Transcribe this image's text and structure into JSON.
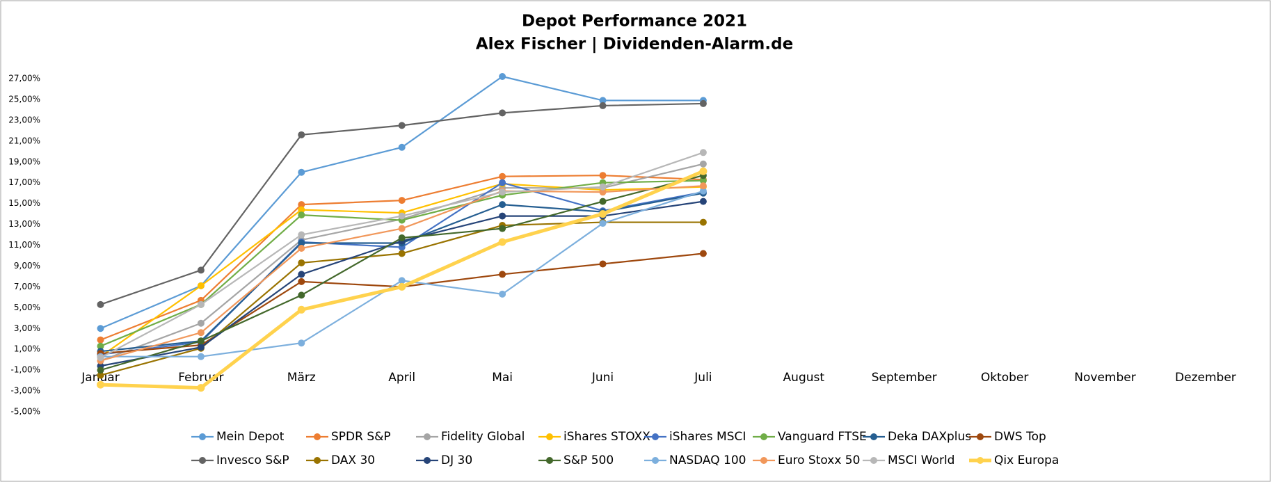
{
  "chart_data": {
    "type": "line",
    "title": "Depot Performance 2021",
    "subtitle": "Alex Fischer | Dividenden-Alarm.de",
    "categories": [
      "Januar",
      "Februar",
      "März",
      "April",
      "Mai",
      "Juni",
      "Juli",
      "August",
      "September",
      "Oktober",
      "November",
      "Dezember"
    ],
    "ylim": [
      -5,
      27
    ],
    "yticks": [
      {
        "value": -5,
        "label": "-5,00%"
      },
      {
        "value": -3,
        "label": "-3,00%"
      },
      {
        "value": -1,
        "label": "-1,00%"
      },
      {
        "value": 1,
        "label": "1,00%"
      },
      {
        "value": 3,
        "label": "3,00%"
      },
      {
        "value": 5,
        "label": "5,00%"
      },
      {
        "value": 7,
        "label": "7,00%"
      },
      {
        "value": 9,
        "label": "9,00%"
      },
      {
        "value": 11,
        "label": "11,00%"
      },
      {
        "value": 13,
        "label": "13,00%"
      },
      {
        "value": 15,
        "label": "15,00%"
      },
      {
        "value": 17,
        "label": "17,00%"
      },
      {
        "value": 19,
        "label": "19,00%"
      },
      {
        "value": 21,
        "label": "21,00%"
      },
      {
        "value": 23,
        "label": "23,00%"
      },
      {
        "value": 25,
        "label": "25,00%"
      },
      {
        "value": 27,
        "label": "27,00%"
      }
    ],
    "grid": false,
    "legend": "bottom",
    "series": [
      {
        "name": "Mein Depot",
        "color": "#5b9bd5",
        "values": [
          3.0,
          7.1,
          18.0,
          20.4,
          27.2,
          24.9,
          24.9,
          null,
          null,
          null,
          null,
          null
        ]
      },
      {
        "name": "SPDR S&P",
        "color": "#ed7d31",
        "values": [
          1.9,
          5.7,
          14.9,
          15.3,
          17.6,
          17.7,
          17.3,
          null,
          null,
          null,
          null,
          null
        ]
      },
      {
        "name": "Fidelity Global",
        "color": "#a5a5a5",
        "values": [
          -0.1,
          3.5,
          11.5,
          13.5,
          16.5,
          16.5,
          18.8,
          null,
          null,
          null,
          null,
          null
        ]
      },
      {
        "name": "iShares STOXX",
        "color": "#ffc000",
        "values": [
          0.3,
          7.1,
          14.4,
          14.1,
          16.9,
          16.3,
          16.6,
          null,
          null,
          null,
          null,
          null
        ]
      },
      {
        "name": "iShares MSCI",
        "color": "#4472c4",
        "values": [
          0.5,
          1.7,
          11.3,
          10.8,
          17.0,
          14.3,
          16.1,
          null,
          null,
          null,
          null,
          null
        ]
      },
      {
        "name": "Vanguard FTSE",
        "color": "#70ad47",
        "values": [
          1.3,
          5.3,
          13.9,
          13.4,
          15.8,
          17.0,
          17.2,
          null,
          null,
          null,
          null,
          null
        ]
      },
      {
        "name": "Deka DAXplus",
        "color": "#255e91",
        "values": [
          0.8,
          1.8,
          11.2,
          11.2,
          14.9,
          14.2,
          16.0,
          null,
          null,
          null,
          null,
          null
        ]
      },
      {
        "name": "DWS Top",
        "color": "#9e480e",
        "values": [
          0.6,
          1.4,
          7.5,
          7.0,
          8.2,
          9.2,
          10.2,
          null,
          null,
          null,
          null,
          null
        ]
      },
      {
        "name": "Invesco S&P",
        "color": "#636363",
        "values": [
          5.3,
          8.6,
          21.6,
          22.5,
          23.7,
          24.4,
          24.6,
          null,
          null,
          null,
          null,
          null
        ]
      },
      {
        "name": "DAX 30",
        "color": "#997300",
        "values": [
          -1.5,
          1.1,
          9.3,
          10.2,
          12.9,
          13.2,
          13.2,
          null,
          null,
          null,
          null,
          null
        ]
      },
      {
        "name": "DJ 30",
        "color": "#264478",
        "values": [
          -0.6,
          1.2,
          8.2,
          11.4,
          13.8,
          13.8,
          15.2,
          null,
          null,
          null,
          null,
          null
        ]
      },
      {
        "name": "S&P 500",
        "color": "#43682b",
        "values": [
          -1.0,
          1.8,
          6.2,
          11.7,
          12.6,
          15.2,
          17.7,
          null,
          null,
          null,
          null,
          null
        ]
      },
      {
        "name": "NASDAQ 100",
        "color": "#7cafdd",
        "values": [
          0.3,
          0.3,
          1.6,
          7.6,
          6.3,
          13.1,
          16.2,
          null,
          null,
          null,
          null,
          null
        ]
      },
      {
        "name": "Euro Stoxx 50",
        "color": "#f1975a",
        "values": [
          -0.1,
          2.6,
          10.7,
          12.6,
          16.2,
          16.1,
          16.7,
          null,
          null,
          null,
          null,
          null
        ]
      },
      {
        "name": "MSCI World",
        "color": "#b7b7b7",
        "values": [
          0.2,
          5.3,
          12.0,
          13.8,
          16.1,
          16.6,
          19.9,
          null,
          null,
          null,
          null,
          null
        ]
      },
      {
        "name": "Qix Europa",
        "color": "#ffd24d",
        "line_width": 5,
        "values": [
          -2.4,
          -2.7,
          4.8,
          7.0,
          11.3,
          14.0,
          18.1,
          null,
          null,
          null,
          null,
          null
        ]
      }
    ]
  }
}
